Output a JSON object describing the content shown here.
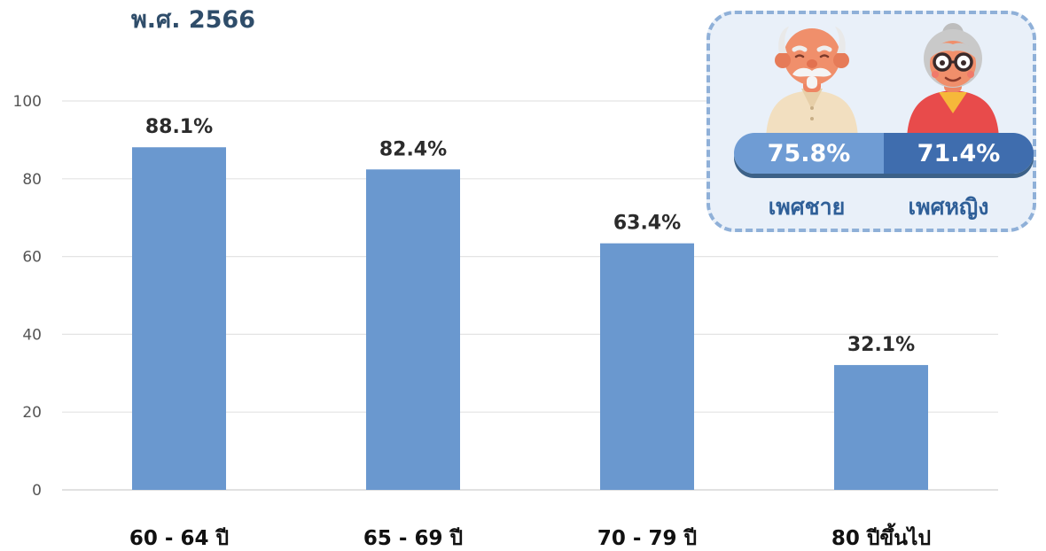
{
  "title": "พ.ศ. 2566",
  "chart_data": {
    "type": "bar",
    "categories": [
      "60 - 64 ปี",
      "65 - 69 ปี",
      "70 - 79 ปี",
      "80 ปีขึ้นไป"
    ],
    "values": [
      88.1,
      82.4,
      63.4,
      32.1
    ],
    "data_labels": [
      "88.1%",
      "82.4%",
      "63.4%",
      "32.1%"
    ],
    "title": "",
    "xlabel": "",
    "ylabel": "",
    "ylim": [
      0,
      100
    ],
    "yticks": [
      0,
      20,
      40,
      60,
      80,
      100
    ],
    "grid": true,
    "bar_color": "#6a98cf"
  },
  "gender_panel": {
    "male": {
      "label": "เพศชาย",
      "value": "75.8%",
      "icon": "elderly-man-icon"
    },
    "female": {
      "label": "เพศหญิง",
      "value": "71.4%",
      "icon": "elderly-woman-icon"
    }
  },
  "colors": {
    "title": "#2f4d6a",
    "bar": "#6a98cf",
    "male_segment": "#6f9cd4",
    "female_segment": "#3f6dae",
    "card_border": "#8fb0d8",
    "card_background": "#e9f0f9"
  }
}
